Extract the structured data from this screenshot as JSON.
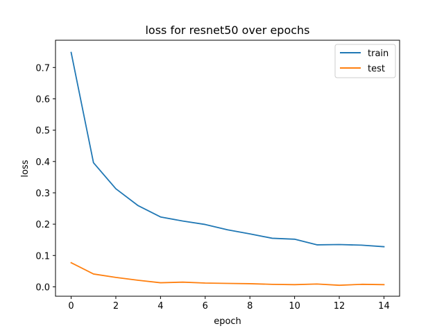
{
  "chart_data": {
    "type": "line",
    "title": "loss for resnet50 over epochs",
    "xlabel": "epoch",
    "ylabel": "loss",
    "x": [
      0,
      1,
      2,
      3,
      4,
      5,
      6,
      7,
      8,
      9,
      10,
      11,
      12,
      13,
      14
    ],
    "xlim": [
      -0.7,
      14.7
    ],
    "ylim": [
      -0.03,
      0.787
    ],
    "xticks": [
      0,
      2,
      4,
      6,
      8,
      10,
      12,
      14
    ],
    "yticks": [
      0.0,
      0.1,
      0.2,
      0.3,
      0.4,
      0.5,
      0.6,
      0.7
    ],
    "xtick_labels": [
      "0",
      "2",
      "4",
      "6",
      "8",
      "10",
      "12",
      "14"
    ],
    "ytick_labels": [
      "0.0",
      "0.1",
      "0.2",
      "0.3",
      "0.4",
      "0.5",
      "0.6",
      "0.7"
    ],
    "grid": false,
    "legend_position": "top-right",
    "series": [
      {
        "name": "train",
        "color": "#1f77b4",
        "values": [
          0.748,
          0.396,
          0.313,
          0.259,
          0.223,
          0.21,
          0.199,
          0.182,
          0.169,
          0.155,
          0.152,
          0.134,
          0.135,
          0.133,
          0.128
        ]
      },
      {
        "name": "test",
        "color": "#ff7f0e",
        "values": [
          0.077,
          0.041,
          0.03,
          0.021,
          0.013,
          0.015,
          0.012,
          0.011,
          0.01,
          0.008,
          0.007,
          0.009,
          0.005,
          0.008,
          0.007
        ]
      }
    ]
  }
}
